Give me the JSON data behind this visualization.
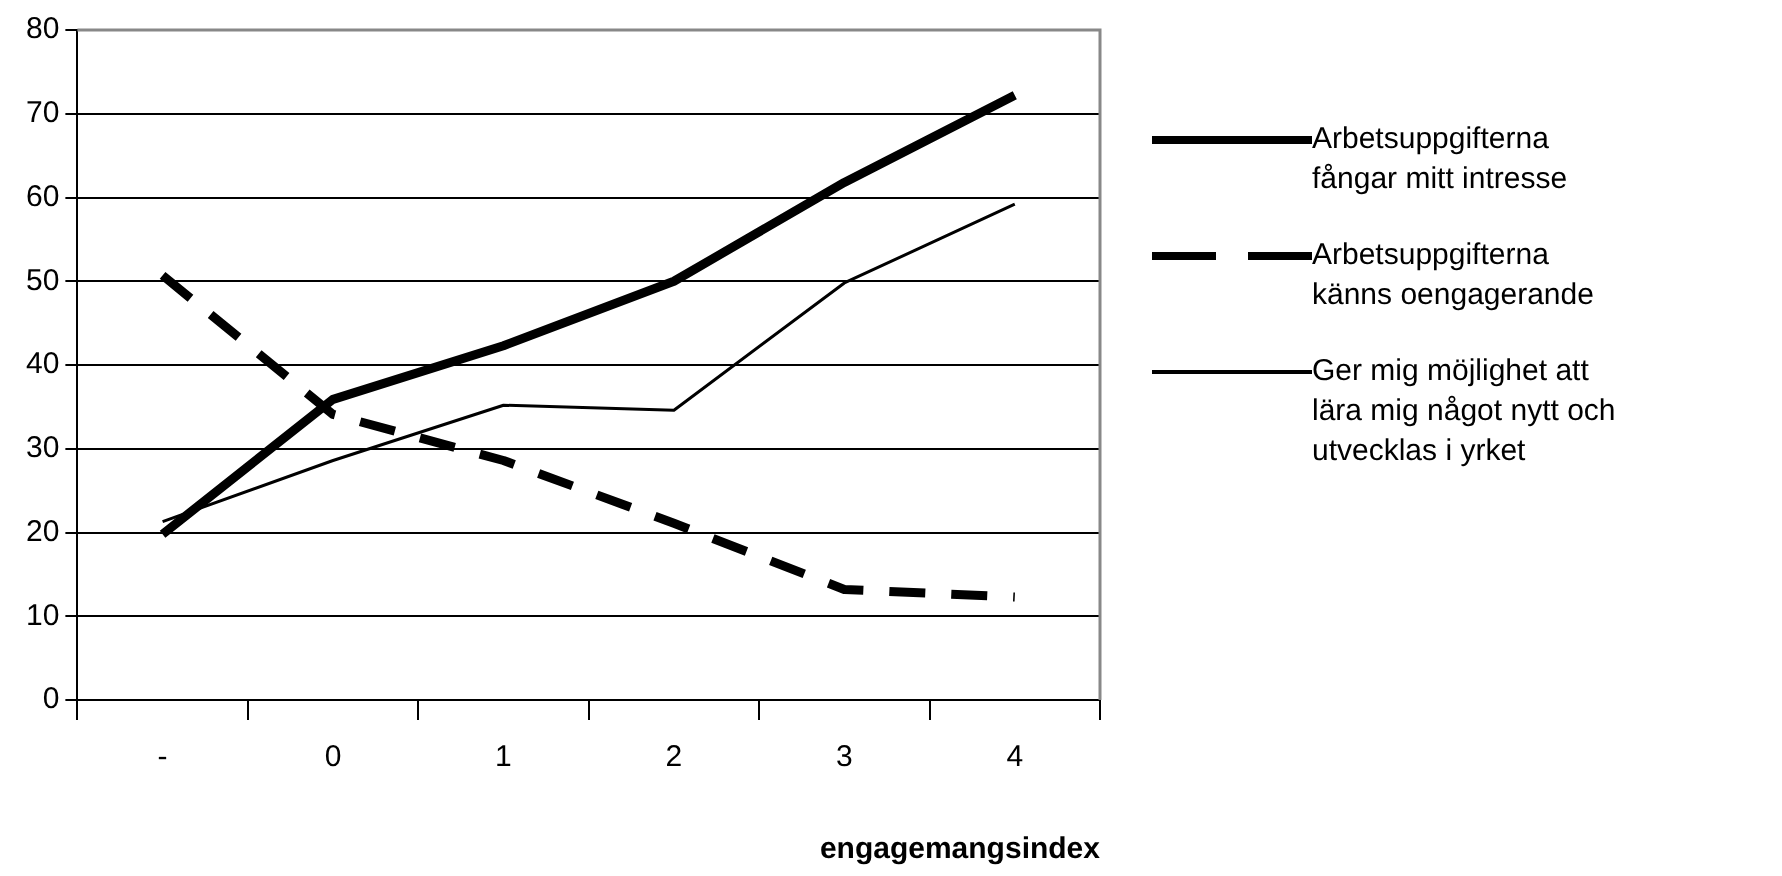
{
  "chart_data": {
    "type": "line",
    "xlabel": "engagemangsindex",
    "categories": [
      "-",
      "0",
      "1",
      "2",
      "3",
      "4"
    ],
    "series": [
      {
        "name": "Arbetsuppgifterna fångar mitt intresse",
        "color": "#000000",
        "line_style": "solid",
        "values": [
          19.8,
          35.9,
          42.3,
          50,
          61.8,
          72.2
        ]
      },
      {
        "name": "Arbetsuppgifterna känns oengagerande",
        "color": "#000000",
        "line_style": "dashed",
        "values": [
          50.7,
          34.1,
          28.6,
          21.1,
          13.2,
          12.3
        ]
      },
      {
        "name": "Ger mig möjlighet att lära mig något nytt och utvecklas i yrket",
        "color": "#000000",
        "line_style": "solid",
        "values": [
          21.3,
          28.6,
          35.2,
          34.6,
          49.8,
          59.2
        ]
      }
    ],
    "ylim": [
      0,
      80
    ],
    "yticks": [
      0,
      10,
      20,
      30,
      40,
      50,
      60,
      70,
      80
    ],
    "grid": "y",
    "legend": "right",
    "marker": "none"
  }
}
